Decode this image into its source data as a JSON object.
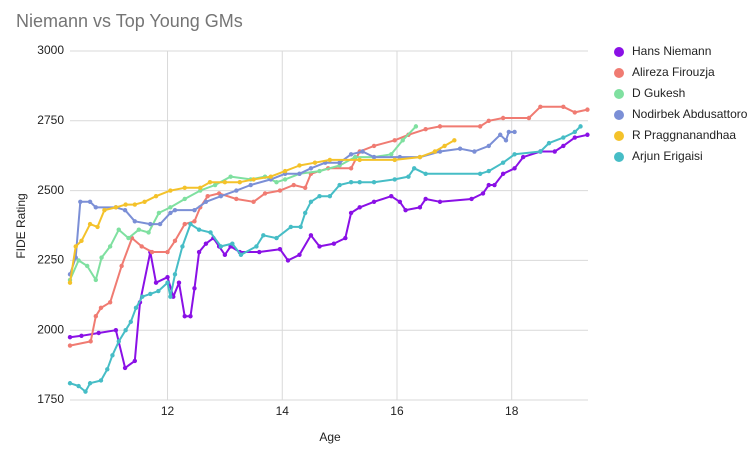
{
  "chart_data": {
    "type": "line",
    "title": "Niemann vs Top Young GMs",
    "x_label": "Age",
    "y_label": "FIDE Rating",
    "xlim": [
      10.3,
      19.33
    ],
    "xticks": [
      12,
      14,
      16,
      18
    ],
    "ylim": [
      1750,
      3000
    ],
    "yticks": [
      1750,
      2000,
      2250,
      2500,
      2750,
      3000
    ],
    "grid": true,
    "legend": "right",
    "series": [
      {
        "name": "Hans Niemann",
        "color": "#8a10e6",
        "x": [
          10.3,
          10.5,
          10.8,
          11.1,
          11.26,
          11.43,
          11.52,
          11.7,
          11.8,
          12.0,
          12.1,
          12.2,
          12.3,
          12.4,
          12.47,
          12.55,
          12.67,
          12.8,
          12.9,
          13.0,
          13.1,
          13.26,
          13.6,
          13.96,
          14.1,
          14.3,
          14.5,
          14.65,
          14.9,
          15.1,
          15.2,
          15.35,
          15.6,
          15.9,
          16.05,
          16.15,
          16.4,
          16.5,
          16.75,
          17.3,
          17.5,
          17.6,
          17.7,
          17.85,
          18.05,
          18.2,
          18.5,
          18.75,
          18.9,
          19.1,
          19.32
        ],
        "values": [
          1975,
          1980,
          1990,
          2000,
          1865,
          1890,
          2100,
          2280,
          2170,
          2190,
          2120,
          2170,
          2050,
          2050,
          2150,
          2280,
          2310,
          2330,
          2300,
          2270,
          2300,
          2280,
          2280,
          2290,
          2250,
          2270,
          2340,
          2300,
          2310,
          2330,
          2420,
          2440,
          2460,
          2480,
          2460,
          2430,
          2440,
          2470,
          2460,
          2470,
          2490,
          2520,
          2520,
          2560,
          2580,
          2620,
          2640,
          2640,
          2660,
          2690,
          2700
        ]
      },
      {
        "name": "Alireza Firouzja",
        "color": "#f07b72",
        "x": [
          10.3,
          10.66,
          10.75,
          10.84,
          11.0,
          11.2,
          11.38,
          11.55,
          11.73,
          12.0,
          12.13,
          12.3,
          12.47,
          12.57,
          12.7,
          12.9,
          13.2,
          13.5,
          13.7,
          13.96,
          14.2,
          14.4,
          14.5,
          14.8,
          15.2,
          15.35,
          15.6,
          15.96,
          16.2,
          16.5,
          16.75,
          17.45,
          17.6,
          17.85,
          18.3,
          18.5,
          18.9,
          19.1,
          19.32
        ],
        "values": [
          1945,
          1960,
          2050,
          2080,
          2100,
          2230,
          2330,
          2300,
          2280,
          2280,
          2320,
          2380,
          2390,
          2440,
          2480,
          2490,
          2470,
          2460,
          2490,
          2500,
          2520,
          2510,
          2560,
          2580,
          2580,
          2640,
          2660,
          2680,
          2700,
          2720,
          2730,
          2730,
          2750,
          2760,
          2760,
          2800,
          2800,
          2780,
          2790
        ]
      },
      {
        "name": "D Gukesh",
        "color": "#7fe0a0",
        "x": [
          10.3,
          10.45,
          10.6,
          10.75,
          10.85,
          11.0,
          11.15,
          11.32,
          11.5,
          11.67,
          11.85,
          12.05,
          12.3,
          12.57,
          12.83,
          13.1,
          13.45,
          13.7,
          13.9,
          14.05,
          14.3,
          14.65,
          15.0,
          15.27,
          15.6,
          15.9,
          16.1,
          16.33
        ],
        "values": [
          2180,
          2250,
          2230,
          2180,
          2260,
          2300,
          2360,
          2330,
          2360,
          2350,
          2420,
          2440,
          2470,
          2500,
          2520,
          2550,
          2540,
          2550,
          2530,
          2540,
          2560,
          2570,
          2590,
          2620,
          2620,
          2630,
          2680,
          2730
        ]
      },
      {
        "name": "Nodirbek Abdusattorov",
        "color": "#7b8fd6",
        "x": [
          10.3,
          10.4,
          10.48,
          10.65,
          10.75,
          11.1,
          11.26,
          11.43,
          11.7,
          11.87,
          12.05,
          12.13,
          12.47,
          12.67,
          12.93,
          13.2,
          13.45,
          13.8,
          14.05,
          14.3,
          14.5,
          14.75,
          15.0,
          15.2,
          15.4,
          15.6,
          16.05,
          16.4,
          16.75,
          17.1,
          17.35,
          17.6,
          17.8,
          17.9,
          17.95,
          18.05
        ],
        "values": [
          2200,
          2260,
          2460,
          2460,
          2440,
          2440,
          2430,
          2390,
          2380,
          2380,
          2420,
          2430,
          2430,
          2460,
          2480,
          2500,
          2520,
          2540,
          2560,
          2560,
          2580,
          2600,
          2600,
          2630,
          2640,
          2620,
          2620,
          2620,
          2640,
          2650,
          2640,
          2660,
          2700,
          2680,
          2710,
          2710
        ]
      },
      {
        "name": "R Praggnanandhaa",
        "color": "#f4c22a",
        "x": [
          10.3,
          10.4,
          10.5,
          10.65,
          10.78,
          10.9,
          11.1,
          11.27,
          11.43,
          11.6,
          11.8,
          12.05,
          12.3,
          12.57,
          12.74,
          13.0,
          13.26,
          13.5,
          13.8,
          14.05,
          14.3,
          14.57,
          14.83,
          15.35,
          15.96,
          16.4,
          16.66,
          16.83,
          17.0
        ],
        "values": [
          2170,
          2300,
          2320,
          2380,
          2370,
          2430,
          2440,
          2450,
          2450,
          2460,
          2480,
          2500,
          2510,
          2510,
          2530,
          2530,
          2530,
          2540,
          2550,
          2570,
          2590,
          2600,
          2610,
          2610,
          2610,
          2620,
          2640,
          2660,
          2680
        ]
      },
      {
        "name": "Arjun Erigaisi",
        "color": "#46bdc6",
        "x": [
          10.3,
          10.45,
          10.57,
          10.65,
          10.84,
          10.95,
          11.04,
          11.15,
          11.27,
          11.36,
          11.45,
          11.56,
          11.7,
          11.84,
          12.0,
          12.05,
          12.13,
          12.26,
          12.4,
          12.55,
          12.75,
          12.93,
          13.13,
          13.28,
          13.55,
          13.67,
          13.9,
          14.15,
          14.32,
          14.4,
          14.5,
          14.65,
          14.83,
          15.0,
          15.2,
          15.35,
          15.6,
          15.96,
          16.2,
          16.3,
          16.5,
          17.45,
          17.6,
          17.85,
          18.05,
          18.5,
          18.65,
          18.9,
          19.1,
          19.2
        ],
        "values": [
          1810,
          1800,
          1780,
          1810,
          1820,
          1860,
          1910,
          1960,
          2000,
          2030,
          2080,
          2120,
          2130,
          2140,
          2170,
          2120,
          2200,
          2300,
          2380,
          2360,
          2350,
          2300,
          2310,
          2270,
          2300,
          2340,
          2330,
          2370,
          2370,
          2420,
          2460,
          2480,
          2480,
          2520,
          2530,
          2530,
          2530,
          2540,
          2550,
          2580,
          2560,
          2560,
          2570,
          2600,
          2630,
          2640,
          2670,
          2690,
          2710,
          2730
        ]
      }
    ]
  }
}
